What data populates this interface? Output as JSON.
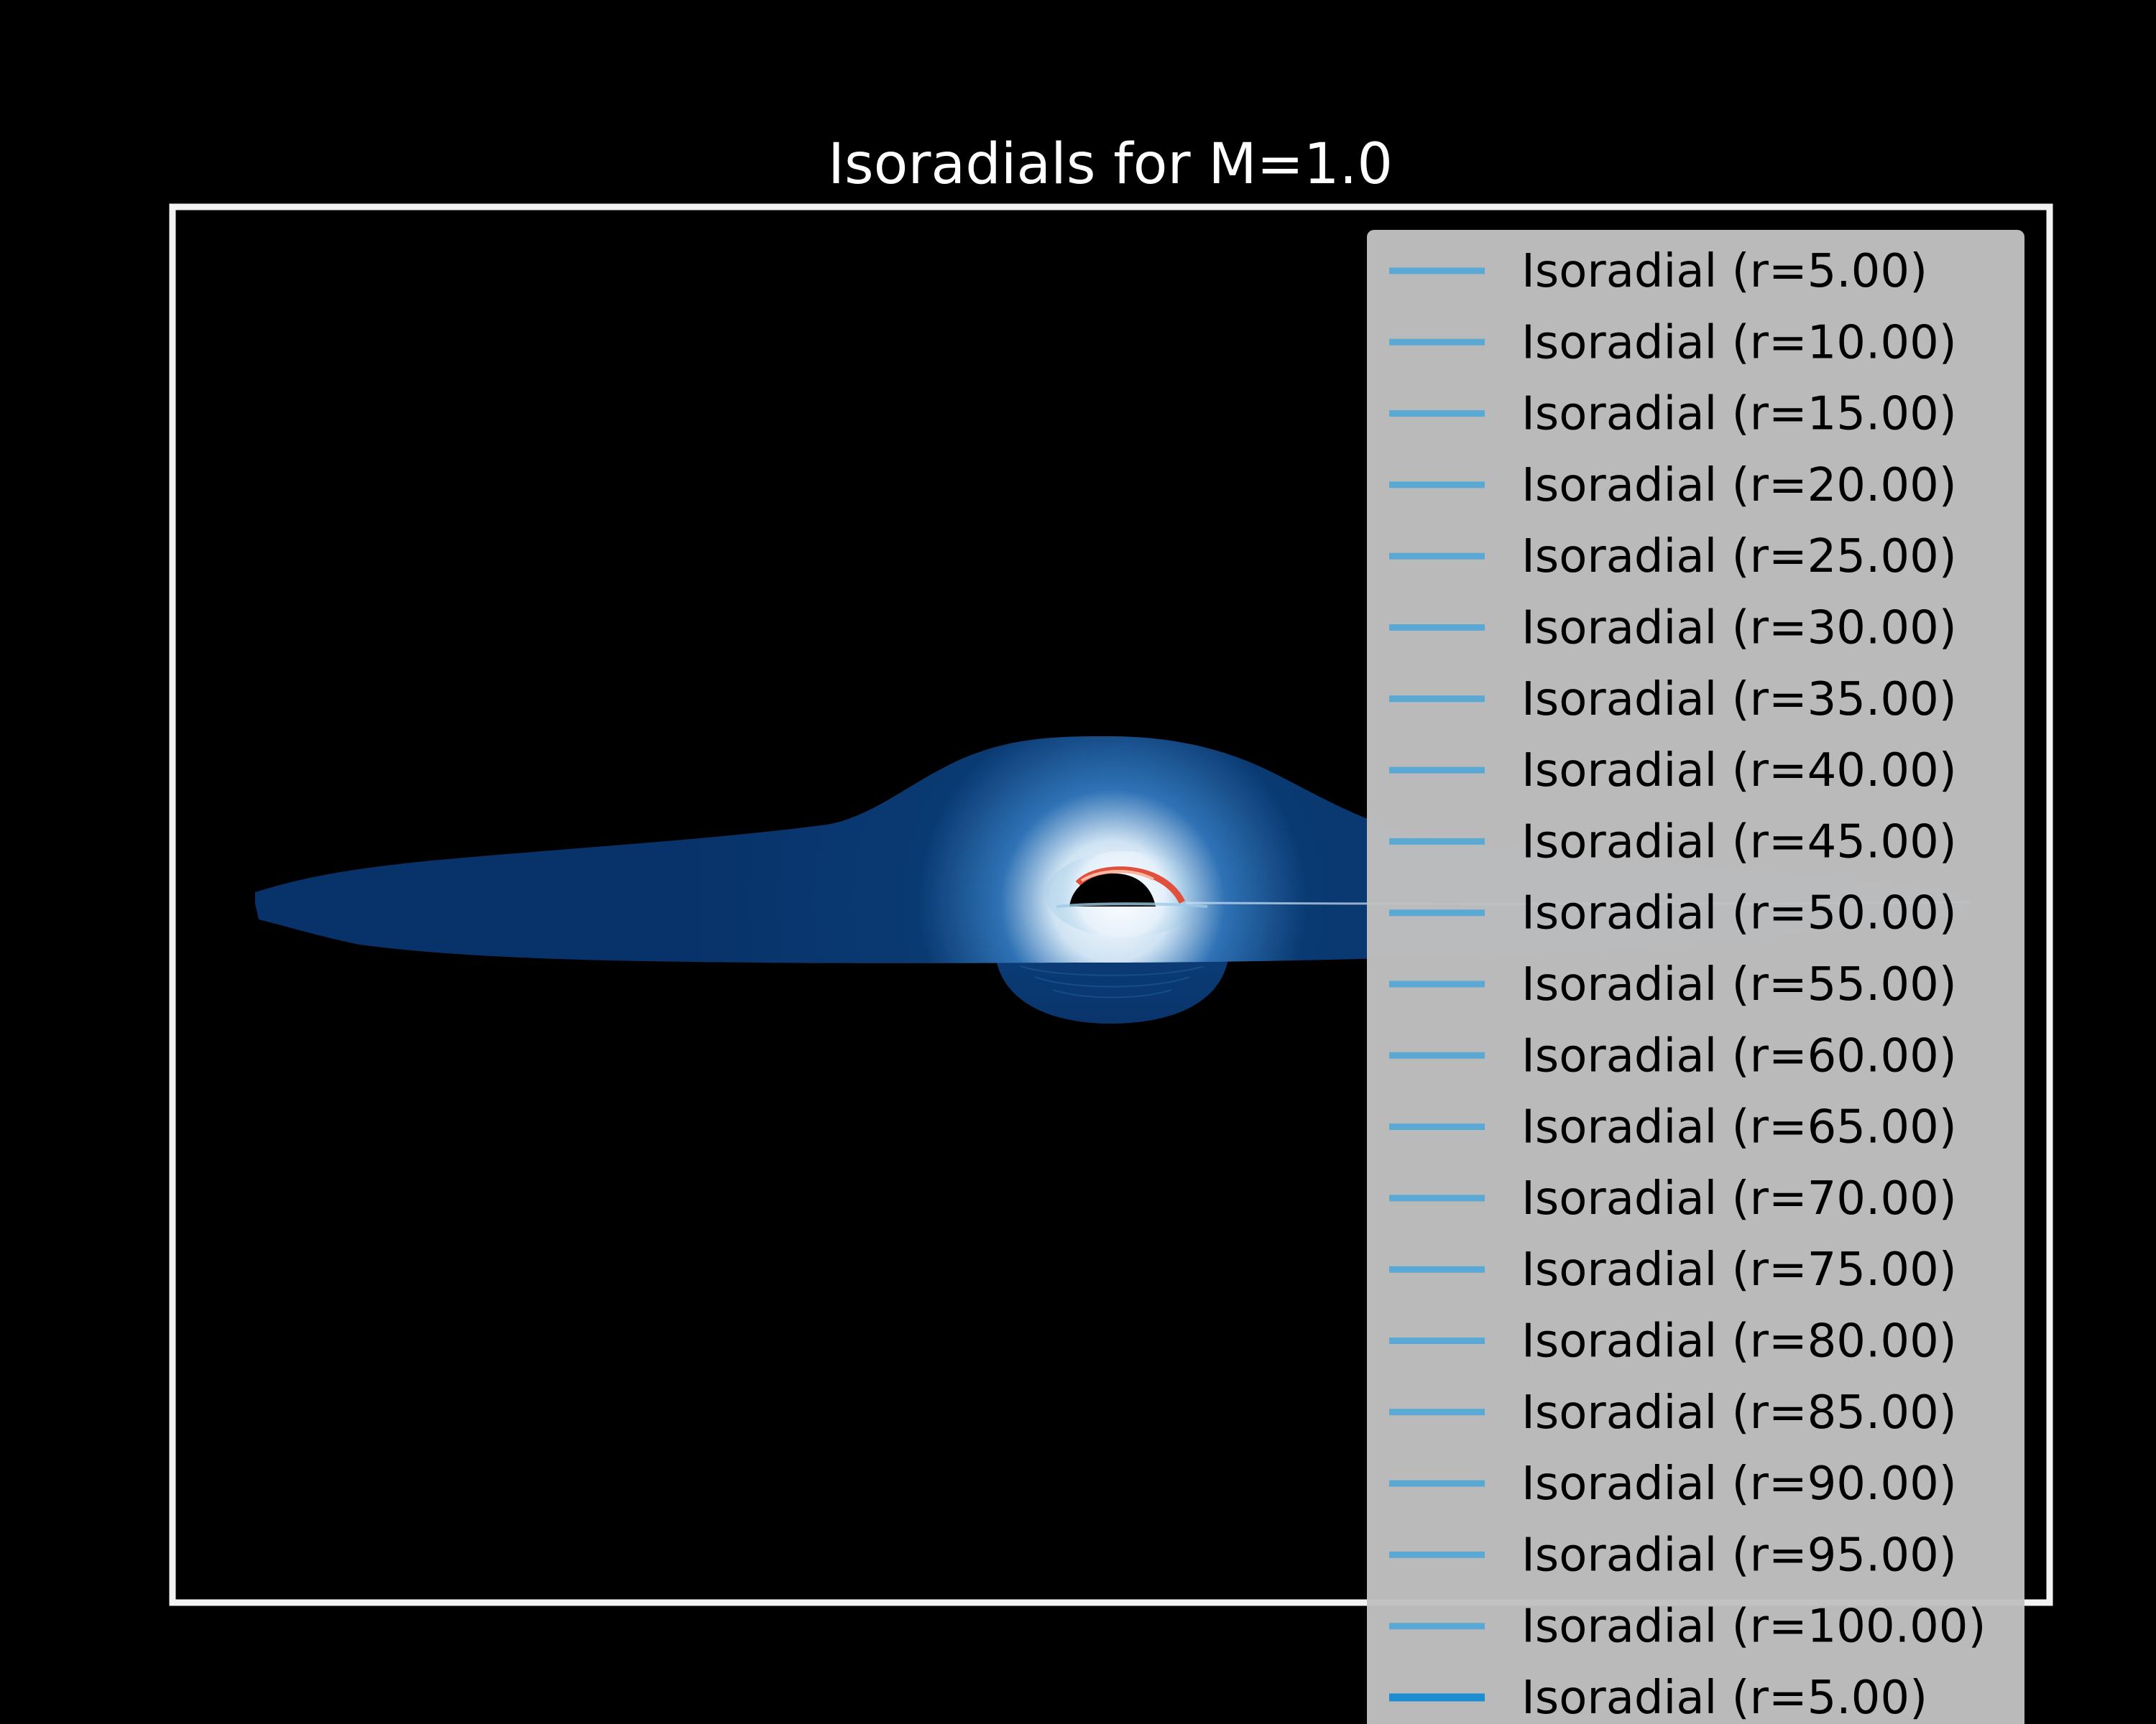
{
  "chart_data": {
    "type": "line",
    "title": "Isoradials for M=1.0",
    "xlabel": "",
    "ylabel": "",
    "axes_visible": false,
    "grid": false,
    "legend_position": "upper-right",
    "background_color": "#000000",
    "frame_color": "#f2f2f2",
    "legend_background": "#c0c0c0",
    "legend_text_color": "#000000",
    "series_color": "#5aa8d4",
    "last_series_color": "#1a8ed0",
    "disk_colormap": [
      "#08306b",
      "#2171b5",
      "#6baed6",
      "#deebf7",
      "#ffffff",
      "#fc9272",
      "#cb181d"
    ],
    "series": [
      {
        "name": "Isoradial (r=5.00)",
        "r": 5
      },
      {
        "name": "Isoradial (r=10.00)",
        "r": 10
      },
      {
        "name": "Isoradial (r=15.00)",
        "r": 15
      },
      {
        "name": "Isoradial (r=20.00)",
        "r": 20
      },
      {
        "name": "Isoradial (r=25.00)",
        "r": 25
      },
      {
        "name": "Isoradial (r=30.00)",
        "r": 30
      },
      {
        "name": "Isoradial (r=35.00)",
        "r": 35
      },
      {
        "name": "Isoradial (r=40.00)",
        "r": 40
      },
      {
        "name": "Isoradial (r=45.00)",
        "r": 45
      },
      {
        "name": "Isoradial (r=50.00)",
        "r": 50
      },
      {
        "name": "Isoradial (r=55.00)",
        "r": 55
      },
      {
        "name": "Isoradial (r=60.00)",
        "r": 60
      },
      {
        "name": "Isoradial (r=65.00)",
        "r": 65
      },
      {
        "name": "Isoradial (r=70.00)",
        "r": 70
      },
      {
        "name": "Isoradial (r=75.00)",
        "r": 75
      },
      {
        "name": "Isoradial (r=80.00)",
        "r": 80
      },
      {
        "name": "Isoradial (r=85.00)",
        "r": 85
      },
      {
        "name": "Isoradial (r=90.00)",
        "r": 90
      },
      {
        "name": "Isoradial (r=95.00)",
        "r": 95
      },
      {
        "name": "Isoradial (r=100.00)",
        "r": 100
      },
      {
        "name": "Isoradial (r=5.00)",
        "r": 5
      }
    ]
  }
}
